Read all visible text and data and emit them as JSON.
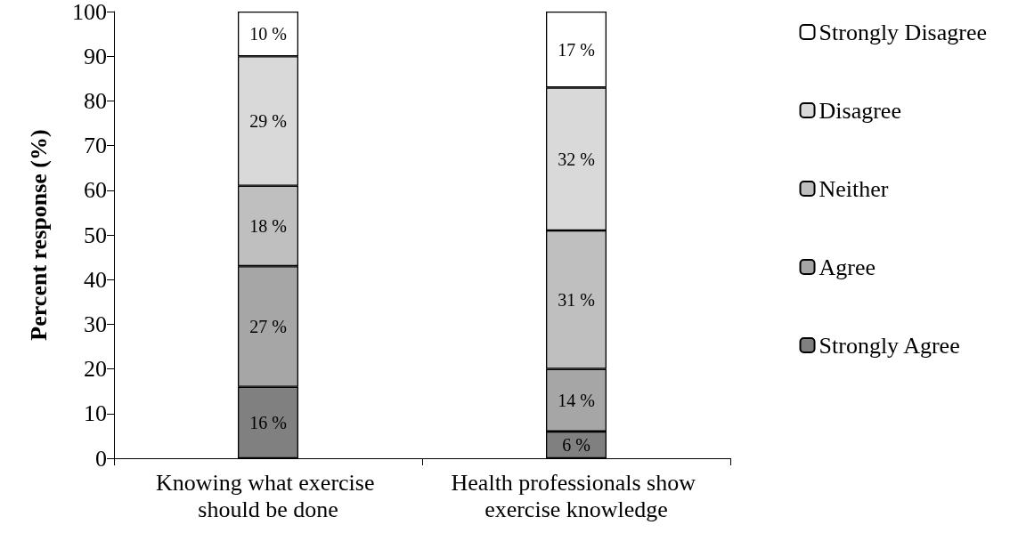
{
  "chart_data": {
    "type": "bar",
    "stacked": true,
    "ylabel": "Percent response (%)",
    "categories": [
      "Knowing what exercise should be done",
      "Health professionals show exercise knowledge"
    ],
    "series": [
      {
        "name": "Strongly Agree",
        "color": "#808080",
        "values": [
          16,
          6
        ],
        "value_labels": [
          "16 %",
          "6 %"
        ]
      },
      {
        "name": "Agree",
        "color": "#a6a6a6",
        "values": [
          27,
          14
        ],
        "value_labels": [
          "27 %",
          "14 %"
        ]
      },
      {
        "name": "Neither",
        "color": "#bfbfbf",
        "values": [
          18,
          31
        ],
        "value_labels": [
          "18 %",
          "31 %"
        ]
      },
      {
        "name": "Disagree",
        "color": "#d9d9d9",
        "values": [
          29,
          32
        ],
        "value_labels": [
          "29 %",
          "32 %"
        ]
      },
      {
        "name": "Strongly Disagree",
        "color": "#ffffff",
        "values": [
          10,
          17
        ],
        "value_labels": [
          "10 %",
          "17 %"
        ]
      }
    ],
    "ylim": [
      0,
      100
    ],
    "yticks": [
      0,
      10,
      20,
      30,
      40,
      50,
      60,
      70,
      80,
      90,
      100
    ],
    "grid": false,
    "legend": "right"
  }
}
